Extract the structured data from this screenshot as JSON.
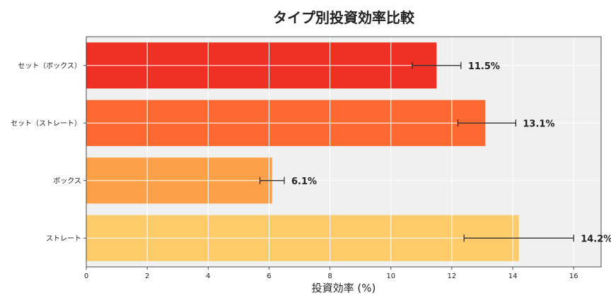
{
  "chart_data": {
    "type": "bar",
    "orientation": "horizontal",
    "title": "タイプ別投資効率比較",
    "xlabel": "投資効率 (%)",
    "ylabel": "",
    "categories": [
      "セット（ボックス）",
      "セット（ストレート）",
      "ボックス",
      "ストレート"
    ],
    "values": [
      11.5,
      13.1,
      6.1,
      14.2
    ],
    "error_low": [
      10.7,
      12.2,
      5.7,
      12.4
    ],
    "error_high": [
      12.3,
      14.1,
      6.5,
      16.0
    ],
    "data_labels": [
      "11.5%",
      "13.1%",
      "6.1%",
      "14.2%"
    ],
    "bar_colors": [
      "#ee3124",
      "#fc6a32",
      "#fca04a",
      "#fecb6b"
    ],
    "xlim": [
      0,
      16.9
    ],
    "xticks": [
      0,
      2,
      4,
      6,
      8,
      10,
      12,
      14,
      16
    ],
    "grid": true,
    "plot_background": "#f0f0f0"
  }
}
